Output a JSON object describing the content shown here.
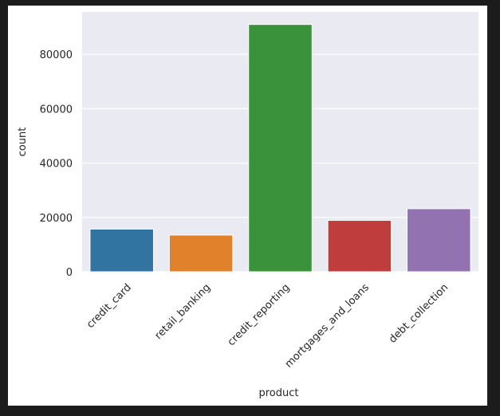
{
  "chart_data": {
    "type": "bar",
    "title": "",
    "xlabel": "product",
    "ylabel": "count",
    "categories": [
      "credit_card",
      "retail_banking",
      "credit_reporting",
      "mortgages_and_loans",
      "debt_collection"
    ],
    "values": [
      15700,
      13500,
      91000,
      18900,
      23200
    ],
    "colors": [
      "#3274a1",
      "#e1812c",
      "#3a923a",
      "#c03d3e",
      "#9372b2"
    ],
    "yticks": [
      0,
      20000,
      40000,
      60000,
      80000
    ],
    "ylim": [
      0,
      95600
    ],
    "grid": true,
    "background": "#eaeaf2"
  }
}
